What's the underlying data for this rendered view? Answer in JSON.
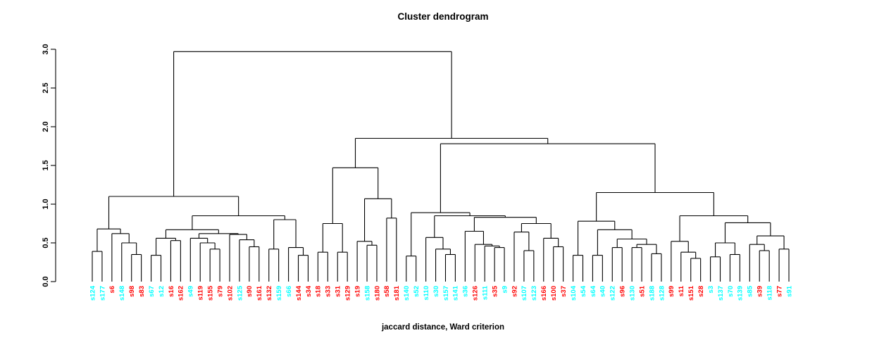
{
  "title": "Cluster dendrogram",
  "caption": "jaccard distance, Ward criterion",
  "colors": {
    "cyan": "#00ffff",
    "red": "#ff0000",
    "line": "#000000",
    "background": "#ffffff"
  },
  "chart_data": {
    "type": "dendrogram",
    "title": "Cluster dendrogram",
    "caption": "jaccard distance, Ward criterion",
    "ylabel": "",
    "xlabel": "",
    "ylim": [
      0.0,
      3.0
    ],
    "y_ticks": [
      "0.0",
      "0.5",
      "1.0",
      "1.5",
      "2.0",
      "2.5",
      "3.0"
    ],
    "grid": false,
    "legend": false,
    "root_height": 2.97,
    "leaves": [
      {
        "label": "s124",
        "color": "cyan"
      },
      {
        "label": "s177",
        "color": "cyan"
      },
      {
        "label": "s6",
        "color": "red"
      },
      {
        "label": "s148",
        "color": "cyan"
      },
      {
        "label": "s98",
        "color": "red"
      },
      {
        "label": "s83",
        "color": "red"
      },
      {
        "label": "s67",
        "color": "cyan"
      },
      {
        "label": "s12",
        "color": "cyan"
      },
      {
        "label": "s16",
        "color": "red"
      },
      {
        "label": "s162",
        "color": "red"
      },
      {
        "label": "s49",
        "color": "cyan"
      },
      {
        "label": "s119",
        "color": "red"
      },
      {
        "label": "s155",
        "color": "red"
      },
      {
        "label": "s79",
        "color": "red"
      },
      {
        "label": "s102",
        "color": "red"
      },
      {
        "label": "s125",
        "color": "cyan"
      },
      {
        "label": "s90",
        "color": "red"
      },
      {
        "label": "s161",
        "color": "red"
      },
      {
        "label": "s132",
        "color": "red"
      },
      {
        "label": "s159",
        "color": "cyan"
      },
      {
        "label": "s66",
        "color": "cyan"
      },
      {
        "label": "s144",
        "color": "red"
      },
      {
        "label": "s34",
        "color": "red"
      },
      {
        "label": "s18",
        "color": "red"
      },
      {
        "label": "s33",
        "color": "red"
      },
      {
        "label": "s31",
        "color": "red"
      },
      {
        "label": "s129",
        "color": "red"
      },
      {
        "label": "s19",
        "color": "red"
      },
      {
        "label": "s158",
        "color": "cyan"
      },
      {
        "label": "s180",
        "color": "red"
      },
      {
        "label": "s58",
        "color": "red"
      },
      {
        "label": "s181",
        "color": "red"
      },
      {
        "label": "s140",
        "color": "cyan"
      },
      {
        "label": "s52",
        "color": "cyan"
      },
      {
        "label": "s110",
        "color": "cyan"
      },
      {
        "label": "s30",
        "color": "cyan"
      },
      {
        "label": "s157",
        "color": "cyan"
      },
      {
        "label": "s141",
        "color": "cyan"
      },
      {
        "label": "s36",
        "color": "cyan"
      },
      {
        "label": "s126",
        "color": "red"
      },
      {
        "label": "s111",
        "color": "cyan"
      },
      {
        "label": "s35",
        "color": "red"
      },
      {
        "label": "s9",
        "color": "cyan"
      },
      {
        "label": "s92",
        "color": "red"
      },
      {
        "label": "s107",
        "color": "cyan"
      },
      {
        "label": "s123",
        "color": "cyan"
      },
      {
        "label": "s166",
        "color": "red"
      },
      {
        "label": "s100",
        "color": "red"
      },
      {
        "label": "s37",
        "color": "red"
      },
      {
        "label": "s104",
        "color": "cyan"
      },
      {
        "label": "s54",
        "color": "cyan"
      },
      {
        "label": "s64",
        "color": "cyan"
      },
      {
        "label": "s40",
        "color": "cyan"
      },
      {
        "label": "s122",
        "color": "cyan"
      },
      {
        "label": "s96",
        "color": "red"
      },
      {
        "label": "s130",
        "color": "cyan"
      },
      {
        "label": "s51",
        "color": "red"
      },
      {
        "label": "s188",
        "color": "cyan"
      },
      {
        "label": "s128",
        "color": "cyan"
      },
      {
        "label": "s99",
        "color": "red"
      },
      {
        "label": "s11",
        "color": "red"
      },
      {
        "label": "s151",
        "color": "red"
      },
      {
        "label": "s28",
        "color": "red"
      },
      {
        "label": "s3",
        "color": "cyan"
      },
      {
        "label": "s137",
        "color": "cyan"
      },
      {
        "label": "s70",
        "color": "cyan"
      },
      {
        "label": "s139",
        "color": "cyan"
      },
      {
        "label": "s85",
        "color": "cyan"
      },
      {
        "label": "s39",
        "color": "red"
      },
      {
        "label": "s118",
        "color": "cyan"
      },
      {
        "label": "s77",
        "color": "red"
      },
      {
        "label": "s91",
        "color": "cyan"
      }
    ],
    "tree": [
      2.97,
      [
        1.1,
        [
          0.68,
          [
            0.39,
            "s124",
            "s177"
          ],
          [
            0.62,
            "s6",
            [
              0.5,
              "s148",
              [
                0.35,
                "s98",
                "s83"
              ]
            ]
          ]
        ],
        [
          0.85,
          [
            0.67,
            [
              0.56,
              [
                0.34,
                "s67",
                "s12"
              ],
              [
                0.53,
                "s16",
                "s162"
              ]
            ],
            [
              0.62,
              [
                0.56,
                "s49",
                [
                  0.5,
                  "s119",
                  [
                    0.42,
                    "s155",
                    "s79"
                  ]
                ]
              ],
              [
                0.61,
                "s102",
                [
                  0.54,
                  "s125",
                  [
                    0.45,
                    "s90",
                    "s161"
                  ]
                ]
              ]
            ]
          ],
          [
            0.8,
            [
              0.42,
              "s132",
              "s159"
            ],
            [
              0.44,
              "s66",
              [
                0.34,
                "s144",
                "s34"
              ]
            ]
          ]
        ]
      ],
      [
        1.85,
        [
          1.47,
          [
            0.75,
            [
              0.38,
              "s18",
              "s33"
            ],
            [
              0.38,
              "s31",
              "s129"
            ]
          ],
          [
            1.07,
            [
              0.52,
              "s19",
              [
                0.47,
                "s158",
                "s180"
              ]
            ],
            [
              0.82,
              "s58",
              "s181"
            ]
          ]
        ],
        [
          1.78,
          [
            0.89,
            [
              0.33,
              "s140",
              "s52"
            ],
            [
              0.85,
              [
                0.57,
                "s110",
                [
                  0.42,
                  "s30",
                  [
                    0.35,
                    "s157",
                    "s141"
                  ]
                ]
              ],
              [
                0.83,
                [
                  0.65,
                  "s36",
                  [
                    0.48,
                    "s126",
                    [
                      0.46,
                      "s111",
                      [
                        0.44,
                        "s35",
                        "s9"
                      ]
                    ]
                  ]
                ],
                [
                  0.75,
                  [
                    0.64,
                    "s92",
                    [
                      0.4,
                      "s107",
                      "s123"
                    ]
                  ],
                  [
                    0.56,
                    "s166",
                    [
                      0.45,
                      "s100",
                      "s37"
                    ]
                  ]
                ]
              ]
            ]
          ],
          [
            1.15,
            [
              0.78,
              [
                0.34,
                "s104",
                "s54"
              ],
              [
                0.67,
                [
                  0.34,
                  "s64",
                  "s40"
                ],
                [
                  0.55,
                  [
                    0.44,
                    "s122",
                    "s96"
                  ],
                  [
                    0.48,
                    [
                      0.44,
                      "s130",
                      "s51"
                    ],
                    [
                      0.36,
                      "s188",
                      "s128"
                    ]
                  ]
                ]
              ]
            ],
            [
              0.85,
              [
                0.52,
                "s99",
                [
                  0.38,
                  "s11",
                  [
                    0.3,
                    "s151",
                    "s28"
                  ]
                ]
              ],
              [
                0.76,
                [
                  0.5,
                  [
                    0.32,
                    "s3",
                    "s137"
                  ],
                  [
                    0.35,
                    "s70",
                    "s139"
                  ]
                ],
                [
                  0.59,
                  [
                    0.48,
                    "s85",
                    [
                      0.4,
                      "s39",
                      "s118"
                    ]
                  ],
                  [
                    0.42,
                    "s77",
                    "s91"
                  ]
                ]
              ]
            ]
          ]
        ]
      ]
    ]
  }
}
